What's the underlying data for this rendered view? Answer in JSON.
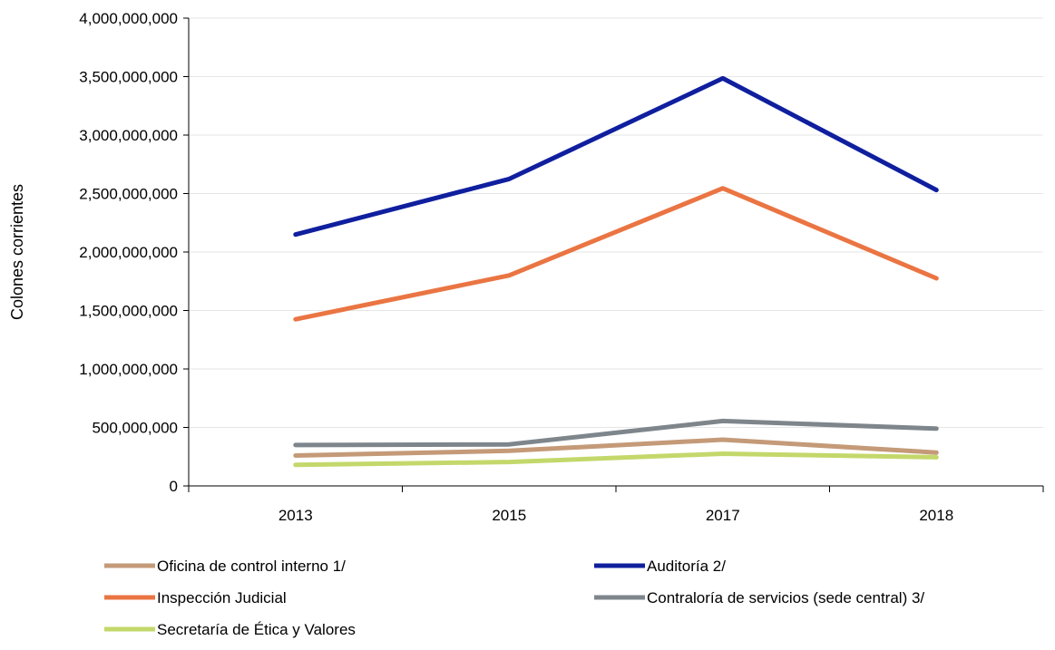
{
  "chart_data": {
    "type": "line",
    "title": "",
    "xlabel": "",
    "ylabel": "Colones corrientes",
    "categories": [
      "2013",
      "2015",
      "2017",
      "2018"
    ],
    "ylim": [
      0,
      4000000000
    ],
    "yticks": [
      0,
      500000000,
      1000000000,
      1500000000,
      2000000000,
      2500000000,
      3000000000,
      3500000000,
      4000000000
    ],
    "ytick_labels": [
      "0",
      "500,000,000",
      "1,000,000,000",
      "1,500,000,000",
      "2,000,000,000",
      "2,500,000,000",
      "3,000,000,000",
      "3,500,000,000",
      "4,000,000,000"
    ],
    "grid": true,
    "legend_position": "bottom",
    "series": [
      {
        "name": "Oficina de control interno 1/",
        "color": "#c49a78",
        "values": [
          260000000,
          300000000,
          395000000,
          285000000
        ]
      },
      {
        "name": "Auditoría 2/",
        "color": "#0f1f9e",
        "values": [
          2150000000,
          2625000000,
          3485000000,
          2530000000
        ]
      },
      {
        "name": "Inspección Judicial",
        "color": "#ea7543",
        "values": [
          1425000000,
          1800000000,
          2545000000,
          1775000000
        ]
      },
      {
        "name": "Contraloría de servicios (sede central) 3/",
        "color": "#7e868c",
        "values": [
          350000000,
          355000000,
          555000000,
          490000000
        ]
      },
      {
        "name": "Secretaría de Ética y Valores",
        "color": "#c3d86b",
        "values": [
          180000000,
          205000000,
          275000000,
          245000000
        ]
      }
    ]
  }
}
